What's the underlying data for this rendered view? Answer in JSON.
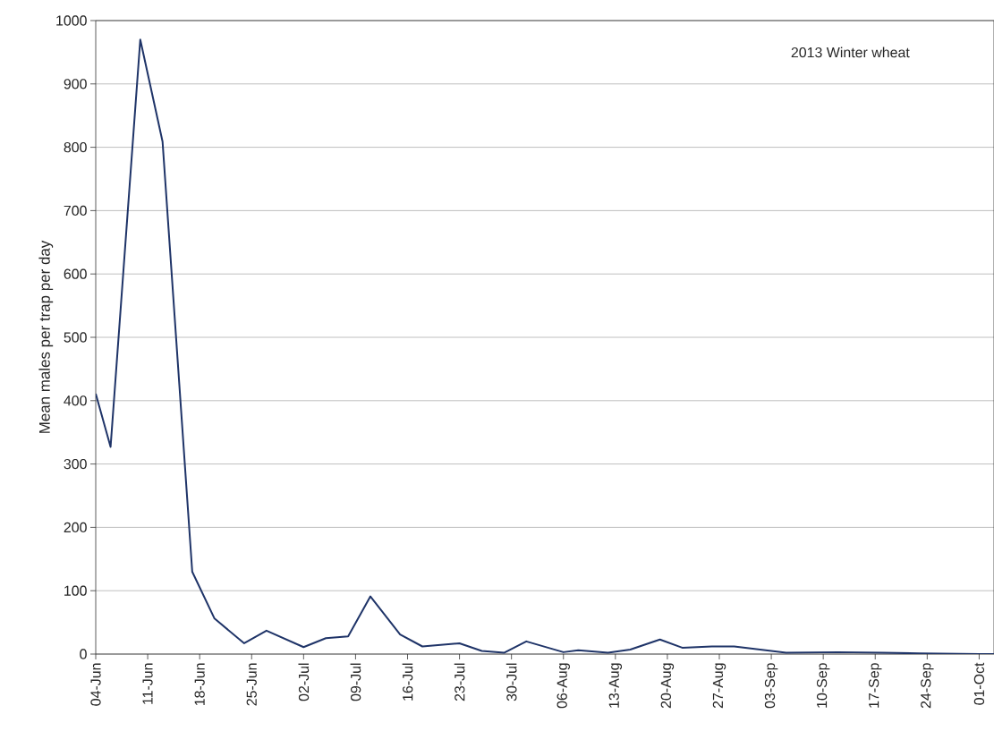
{
  "chart_data": {
    "type": "line",
    "ylabel": "Mean males per trap per day",
    "annotations": [
      "2013 Winter wheat"
    ],
    "x": [
      "2013-06-04",
      "2013-06-06",
      "2013-06-10",
      "2013-06-13",
      "2013-06-17",
      "2013-06-20",
      "2013-06-24",
      "2013-06-27",
      "2013-07-02",
      "2013-07-05",
      "2013-07-08",
      "2013-07-11",
      "2013-07-15",
      "2013-07-18",
      "2013-07-23",
      "2013-07-26",
      "2013-07-29",
      "2013-08-01",
      "2013-08-06",
      "2013-08-08",
      "2013-08-12",
      "2013-08-15",
      "2013-08-19",
      "2013-08-22",
      "2013-08-26",
      "2013-08-29",
      "2013-09-05",
      "2013-09-12",
      "2013-09-18",
      "2013-09-23",
      "2013-10-01",
      "2013-10-03"
    ],
    "series": [
      {
        "color": "#1f3468",
        "values": [
          411,
          327,
          970,
          809,
          130,
          56,
          17,
          37,
          11,
          25,
          28,
          91,
          31,
          12,
          17,
          5,
          2,
          20,
          3,
          6,
          2,
          7,
          23,
          10,
          12,
          12,
          2,
          3,
          2,
          1,
          0,
          0
        ]
      }
    ],
    "xlim": [
      "2013-06-04",
      "2013-10-03"
    ],
    "xticks": [
      {
        "value": "2013-06-04",
        "label": "04-Jun"
      },
      {
        "value": "2013-06-11",
        "label": "11-Jun"
      },
      {
        "value": "2013-06-18",
        "label": "18-Jun"
      },
      {
        "value": "2013-06-25",
        "label": "25-Jun"
      },
      {
        "value": "2013-07-02",
        "label": "02-Jul"
      },
      {
        "value": "2013-07-09",
        "label": "09-Jul"
      },
      {
        "value": "2013-07-16",
        "label": "16-Jul"
      },
      {
        "value": "2013-07-23",
        "label": "23-Jul"
      },
      {
        "value": "2013-07-30",
        "label": "30-Jul"
      },
      {
        "value": "2013-08-06",
        "label": "06-Aug"
      },
      {
        "value": "2013-08-13",
        "label": "13-Aug"
      },
      {
        "value": "2013-08-20",
        "label": "20-Aug"
      },
      {
        "value": "2013-08-27",
        "label": "27-Aug"
      },
      {
        "value": "2013-09-03",
        "label": "03-Sep"
      },
      {
        "value": "2013-09-10",
        "label": "10-Sep"
      },
      {
        "value": "2013-09-17",
        "label": "17-Sep"
      },
      {
        "value": "2013-09-24",
        "label": "24-Sep"
      },
      {
        "value": "2013-10-01",
        "label": "01-Oct"
      }
    ],
    "ylim": [
      0,
      1000
    ],
    "yticks": [
      0,
      100,
      200,
      300,
      400,
      500,
      600,
      700,
      800,
      900,
      1000
    ],
    "grid": "y",
    "marker": "none",
    "line_style": "solid"
  }
}
